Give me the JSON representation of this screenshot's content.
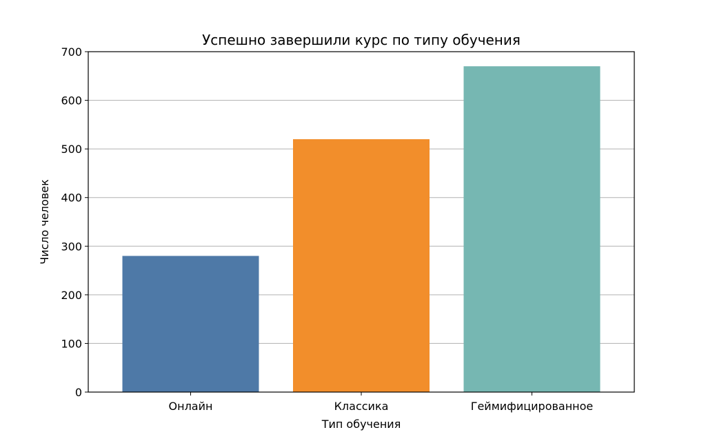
{
  "chart_data": {
    "type": "bar",
    "title": "Успешно завершили курс по типу обучения",
    "xlabel": "Тип обучения",
    "ylabel": "Число человек",
    "categories": [
      "Онлайн",
      "Классика",
      "Геймифицированное"
    ],
    "values": [
      280,
      520,
      670
    ],
    "colors": [
      "#4e79a7",
      "#f28e2b",
      "#76b7b2"
    ],
    "ylim": [
      0,
      700
    ],
    "yticks": [
      0,
      100,
      200,
      300,
      400,
      500,
      600,
      700
    ],
    "grid": "y"
  }
}
